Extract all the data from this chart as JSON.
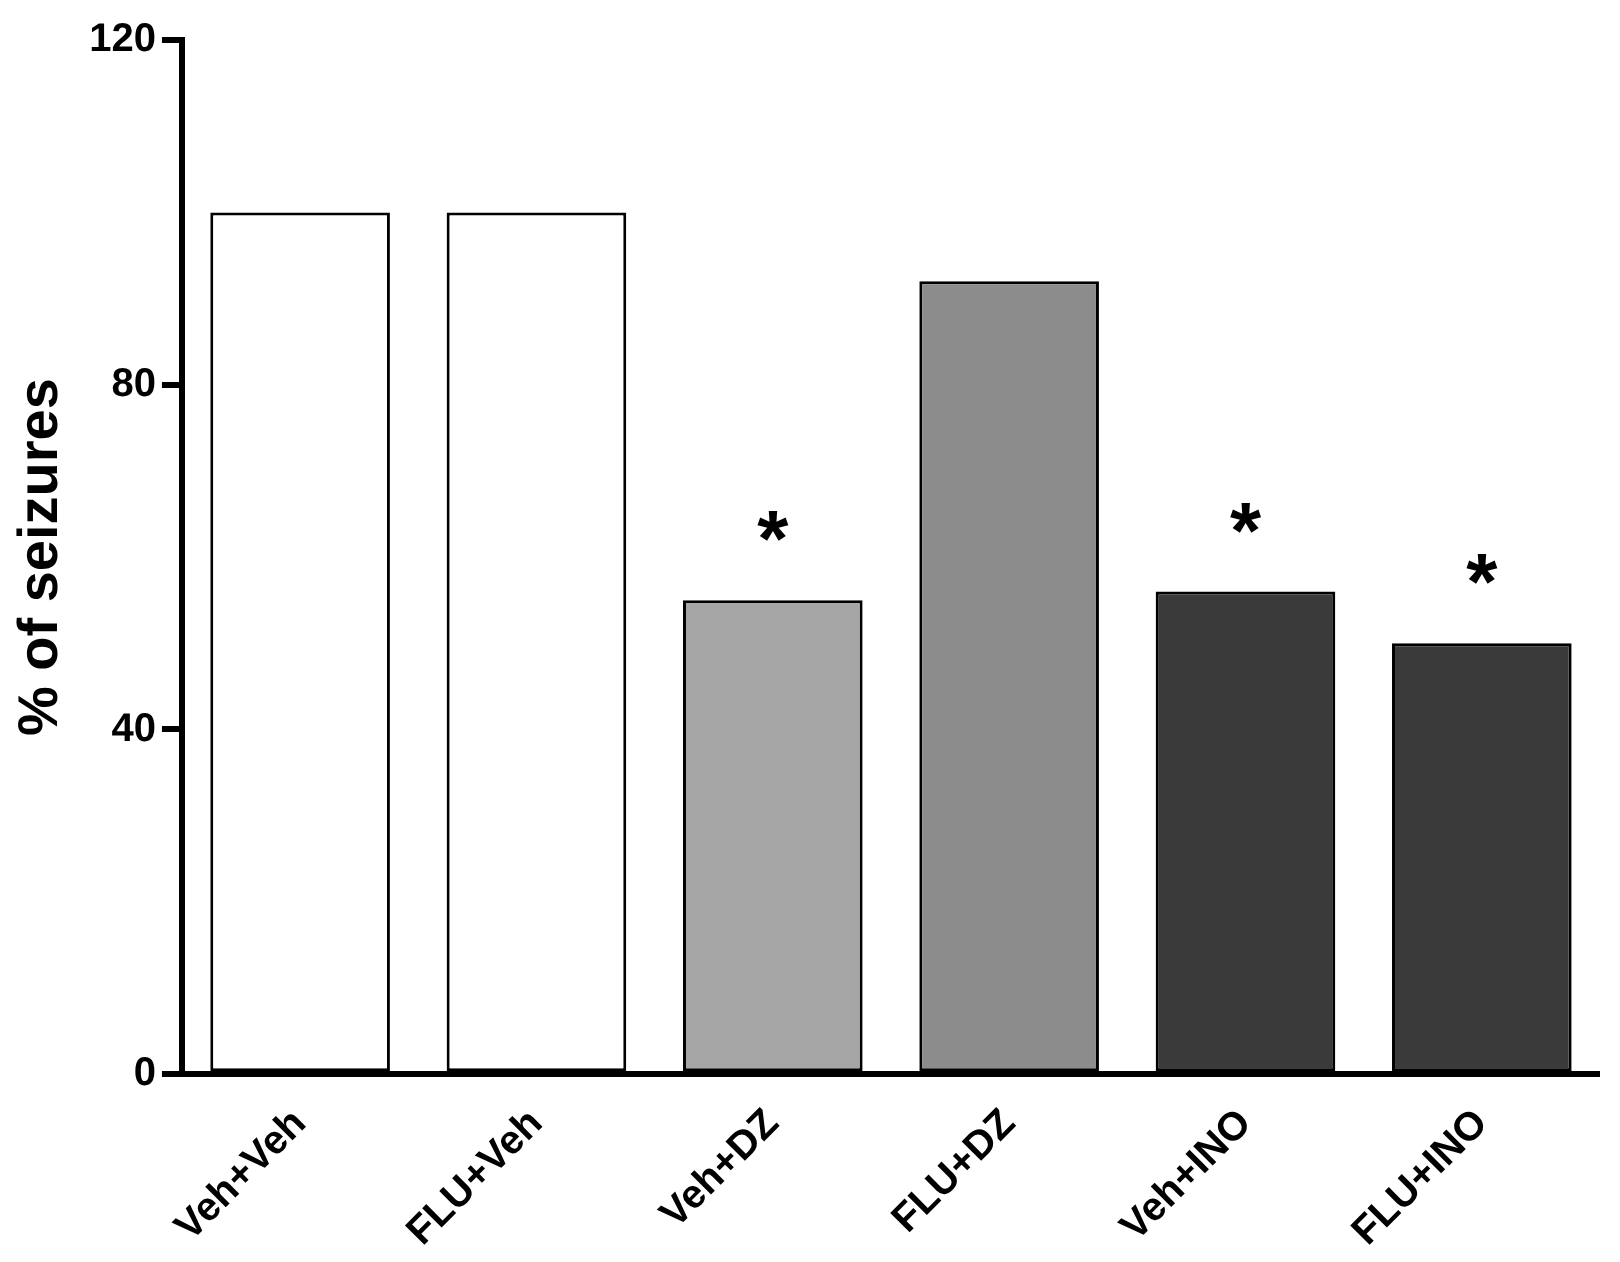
{
  "chart_data": {
    "type": "bar",
    "ylabel": "% of seizures",
    "categories": [
      "Veh+Veh",
      "FLU+Veh",
      "Veh+DZ",
      "FLU+DZ",
      "Veh+INO",
      "FLU+INO"
    ],
    "values": [
      100,
      100,
      55,
      92,
      56,
      50
    ],
    "colors": [
      "#ffffff",
      "#ffffff",
      "#a6a6a6",
      "#8c8c8c",
      "#3a3a3a",
      "#3a3a3a"
    ],
    "ylim": [
      0,
      120
    ],
    "yticks": [
      0,
      40,
      80,
      120
    ],
    "grid": false,
    "legend": false,
    "annotations": [
      {
        "text": "*",
        "x": "Veh+DZ",
        "y": 55
      },
      {
        "text": "*",
        "x": "Veh+INO",
        "y": 56
      },
      {
        "text": "*",
        "x": "FLU+INO",
        "y": 50
      }
    ]
  }
}
